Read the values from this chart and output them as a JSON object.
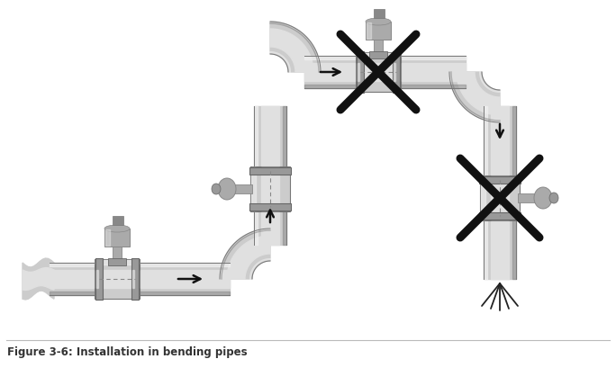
{
  "title": "Figure 3-6: Installation in bending pipes",
  "title_fontsize": 8.5,
  "title_color": "#333333",
  "bg_color": "#ffffff",
  "pipe_outer": "#aaaaaa",
  "pipe_mid": "#cccccc",
  "pipe_inner": "#e0e0e0",
  "pipe_shine": "#f0f0f0",
  "pipe_dark": "#777777",
  "flange_color": "#999999",
  "flange_dark": "#666666",
  "sensor_body": "#aaaaaa",
  "sensor_dark": "#888888",
  "sensor_top": "#bbbbbb",
  "arrow_color": "#111111",
  "cross_color": "#111111",
  "cross_lw": 6.5,
  "spray_color": "#222222",
  "fig_width": 6.84,
  "fig_height": 4.09,
  "dpi": 100,
  "pw": 36,
  "iw": 20
}
